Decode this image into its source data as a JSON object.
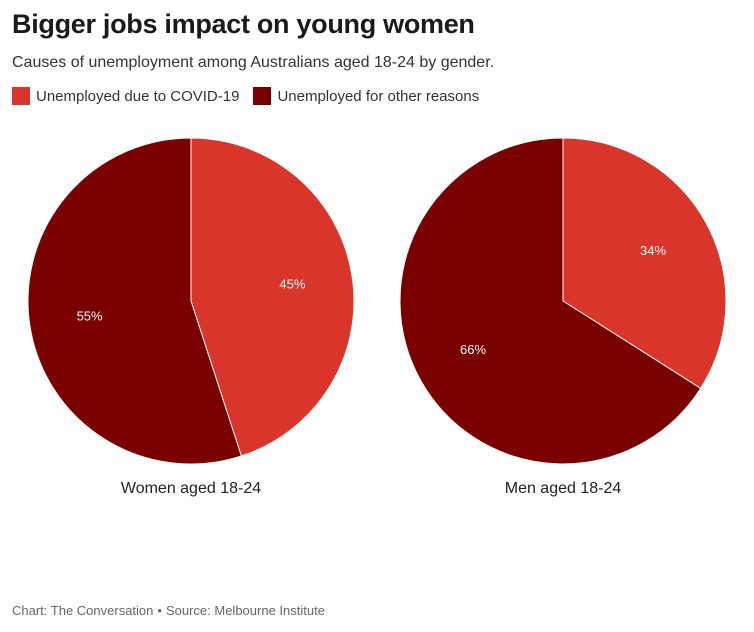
{
  "title": "Bigger jobs impact on young women",
  "subtitle": "Causes of unemployment among Australians aged 18-24 by gender.",
  "legend": [
    {
      "label": "Unemployed due to COVID-19",
      "color": "#d9352b"
    },
    {
      "label": "Unemployed for other reasons",
      "color": "#7a0000"
    }
  ],
  "chart_data": [
    {
      "type": "pie",
      "title": "Women aged 18-24",
      "slices": [
        {
          "name": "Unemployed due to COVID-19",
          "value": 45,
          "label": "45%",
          "color": "#d9352b"
        },
        {
          "name": "Unemployed for other reasons",
          "value": 55,
          "label": "55%",
          "color": "#7a0000"
        }
      ]
    },
    {
      "type": "pie",
      "title": "Men aged 18-24",
      "slices": [
        {
          "name": "Unemployed due to COVID-19",
          "value": 34,
          "label": "34%",
          "color": "#d9352b"
        },
        {
          "name": "Unemployed for other reasons",
          "value": 66,
          "label": "66%",
          "color": "#7a0000"
        }
      ]
    }
  ],
  "footer": {
    "chart_credit": "Chart: The Conversation",
    "separator": "•",
    "source": "Source: Melbourne Institute"
  }
}
